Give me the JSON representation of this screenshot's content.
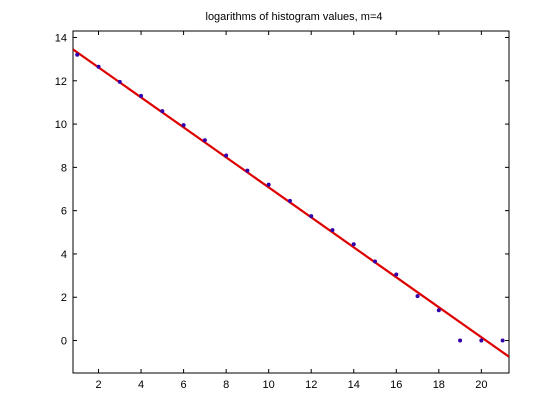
{
  "chart_data": {
    "type": "scatter",
    "title": "logarithms of histogram values, m=4",
    "xlabel": "",
    "ylabel": "",
    "xlim": [
      0.8,
      21.3
    ],
    "ylim": [
      -1.5,
      14.3
    ],
    "xticks": [
      2,
      4,
      6,
      8,
      10,
      12,
      14,
      16,
      18,
      20
    ],
    "yticks": [
      0,
      2,
      4,
      6,
      8,
      10,
      12,
      14
    ],
    "grid": false,
    "series": [
      {
        "type": "scatter",
        "color": "#3300aa",
        "x": [
          1,
          2,
          3,
          4,
          5,
          6,
          7,
          8,
          9,
          10,
          11,
          12,
          13,
          14,
          15,
          16,
          17,
          18,
          19,
          20,
          21
        ],
        "y": [
          13.2,
          12.65,
          11.95,
          11.3,
          10.6,
          9.95,
          9.25,
          8.55,
          7.85,
          7.2,
          6.45,
          5.75,
          5.1,
          4.45,
          3.65,
          3.05,
          2.05,
          1.4,
          0.0,
          0.0,
          0.0
        ]
      },
      {
        "type": "line",
        "color": "#dd0000",
        "x": [
          0.8,
          21.3
        ],
        "y": [
          13.45,
          -0.75
        ]
      }
    ]
  }
}
